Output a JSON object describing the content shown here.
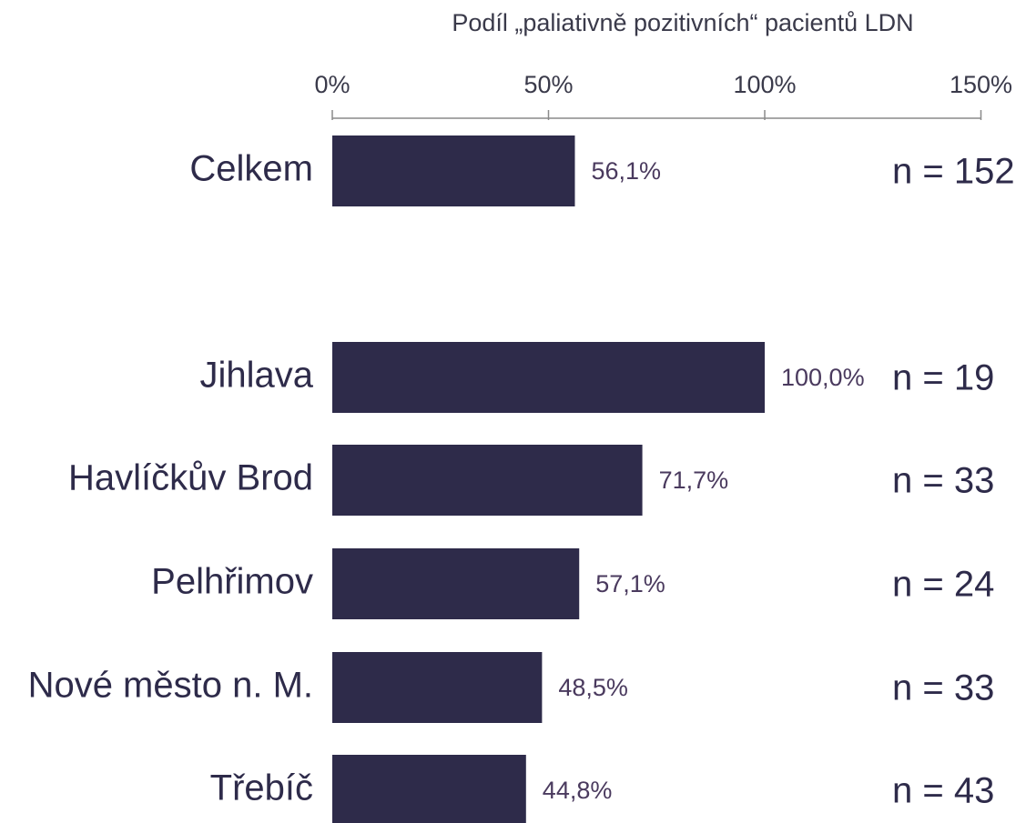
{
  "chart_data": {
    "type": "bar",
    "orientation": "horizontal",
    "title": "Podíl „paliativně pozitivních“ pacientů LDN",
    "categories": [
      "Celkem",
      "Jihlava",
      "Havlíčkův Brod",
      "Pelhřimov",
      "Nové město n. M.",
      "Třebíč"
    ],
    "values": [
      56.1,
      100.0,
      71.7,
      57.1,
      48.5,
      44.8
    ],
    "value_labels": [
      "56,1%",
      "100,0%",
      "71,7%",
      "57,1%",
      "48,5%",
      "44,8%"
    ],
    "annotations": [
      "n = 152",
      "n = 19",
      "n = 33",
      "n = 24",
      "n = 33",
      "n = 43"
    ],
    "color": "#2e2b4a",
    "xlim": [
      0,
      150
    ],
    "xticks": [
      {
        "value": 0,
        "label": "0%"
      },
      {
        "value": 50,
        "label": "50%"
      },
      {
        "value": 100,
        "label": "100%"
      },
      {
        "value": 150,
        "label": "150%"
      }
    ],
    "grid": false
  }
}
